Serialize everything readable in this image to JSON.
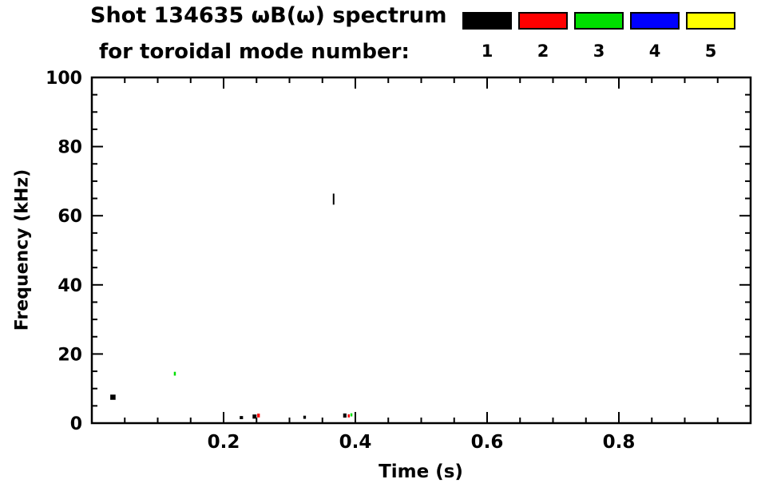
{
  "chart_data": {
    "type": "scatter",
    "title": "Shot 134635 ωB(ω) spectrum",
    "subtitle": "for toroidal mode number:",
    "xlabel": "Time (s)",
    "ylabel": "Frequency (kHz)",
    "xlim": [
      0.0,
      1.0
    ],
    "ylim": [
      0,
      100
    ],
    "grid": false,
    "legend_position": "top-right",
    "xticks": {
      "major": [
        0.2,
        0.4,
        0.6,
        0.8
      ],
      "labels": [
        "0.2",
        "0.4",
        "0.6",
        "0.8"
      ],
      "minor_step": 0.05
    },
    "yticks": {
      "major": [
        0,
        20,
        40,
        60,
        80,
        100
      ],
      "labels": [
        "0",
        "20",
        "40",
        "60",
        "80",
        "100"
      ],
      "minor_step": 5
    },
    "legend": [
      {
        "mode": 1,
        "label": "1",
        "color": "#000000"
      },
      {
        "mode": 2,
        "label": "2",
        "color": "#ff0000"
      },
      {
        "mode": 3,
        "label": "3",
        "color": "#00e000"
      },
      {
        "mode": 4,
        "label": "4",
        "color": "#0000ff"
      },
      {
        "mode": 5,
        "label": "5",
        "color": "#ffff00"
      }
    ],
    "series": [
      {
        "name": "n=1",
        "color": "#000000",
        "points": [
          {
            "t": 0.032,
            "f": 7.5,
            "dt": 0.008,
            "df": 1.5
          },
          {
            "t": 0.227,
            "f": 1.6,
            "dt": 0.005,
            "df": 0.9
          },
          {
            "t": 0.247,
            "f": 1.9,
            "dt": 0.006,
            "df": 1.2
          },
          {
            "t": 0.323,
            "f": 1.7,
            "dt": 0.004,
            "df": 0.9
          },
          {
            "t": 0.367,
            "f": 64.8,
            "dt": 0.002,
            "df": 3.2
          },
          {
            "t": 0.384,
            "f": 2.2,
            "dt": 0.005,
            "df": 1.2
          }
        ]
      },
      {
        "name": "n=2",
        "color": "#ff0000",
        "points": [
          {
            "t": 0.253,
            "f": 2.2,
            "dt": 0.004,
            "df": 1.1
          },
          {
            "t": 0.39,
            "f": 2.1,
            "dt": 0.003,
            "df": 0.9
          }
        ]
      },
      {
        "name": "n=3",
        "color": "#00e000",
        "points": [
          {
            "t": 0.126,
            "f": 14.3,
            "dt": 0.003,
            "df": 1.1
          },
          {
            "t": 0.394,
            "f": 2.4,
            "dt": 0.003,
            "df": 0.9
          }
        ]
      },
      {
        "name": "n=4",
        "color": "#0000ff",
        "points": []
      },
      {
        "name": "n=5",
        "color": "#ffff00",
        "points": []
      }
    ]
  }
}
